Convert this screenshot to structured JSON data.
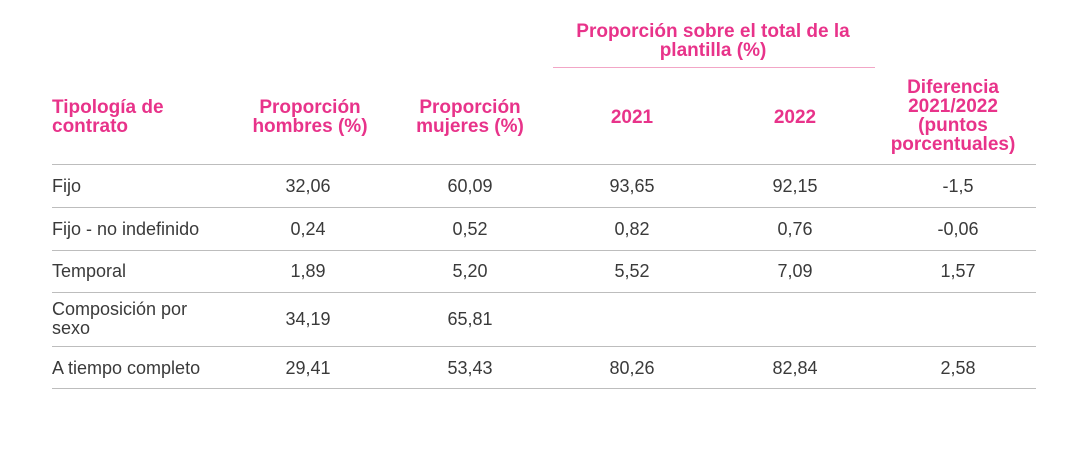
{
  "group_header": "Proporción sobre el total de la plantilla (%)",
  "columns": {
    "tipologia": "Tipología de contrato",
    "hombres": "Proporción hombres (%)",
    "mujeres": "Proporción mujeres (%)",
    "y2021": "2021",
    "y2022": "2022",
    "diferencia": "Diferencia 2021/2022 (puntos porcentuales)"
  },
  "rows": [
    {
      "label": "Fijo",
      "hombres": "32,06",
      "mujeres": "60,09",
      "y2021": "93,65",
      "y2022": "92,15",
      "diferencia": "-1,5"
    },
    {
      "label": "Fijo - no indefinido",
      "hombres": "0,24",
      "mujeres": "0,52",
      "y2021": "0,82",
      "y2022": "0,76",
      "diferencia": "-0,06"
    },
    {
      "label": "Temporal",
      "hombres": "1,89",
      "mujeres": "5,20",
      "y2021": "5,52",
      "y2022": "7,09",
      "diferencia": "1,57"
    },
    {
      "label": "Composición por sexo",
      "hombres": "34,19",
      "mujeres": "65,81",
      "y2021": "",
      "y2022": "",
      "diferencia": ""
    },
    {
      "label": "A tiempo completo",
      "hombres": "29,41",
      "mujeres": "53,43",
      "y2021": "80,26",
      "y2022": "82,84",
      "diferencia": "2,58"
    }
  ],
  "colors": {
    "header": "#e8338a",
    "text": "#3a3a3a",
    "rule": "#bdbdbd"
  }
}
